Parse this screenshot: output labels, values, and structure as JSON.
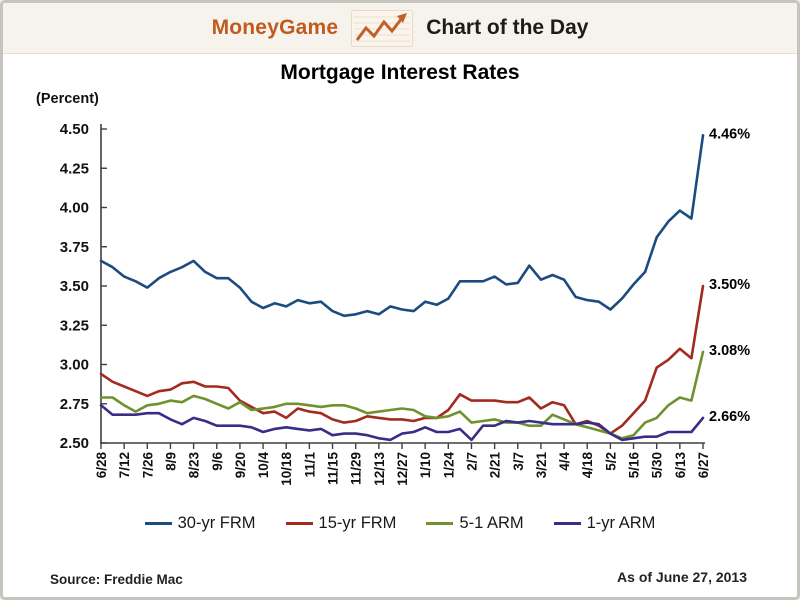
{
  "header": {
    "brand": "MoneyGame",
    "brand_color": "#c05a1e",
    "chart_of_the_day": "Chart of the Day",
    "icon": "zigzag-trend-arrow-icon",
    "icon_color": "#c06029"
  },
  "footer": {
    "source": "Source: Freddie Mac",
    "as_of": "As of June 27, 2013"
  },
  "chart_data": {
    "type": "line",
    "title": "Mortgage Interest Rates",
    "ylabel": "(Percent)",
    "xlabel": "",
    "ylim": [
      2.5,
      4.5
    ],
    "y_tick_step": 0.25,
    "y_tick_labels": [
      "4.50",
      "4.25",
      "4.00",
      "3.75",
      "3.50",
      "3.25",
      "3.00",
      "2.75",
      "2.50"
    ],
    "x_tick_labels": [
      "6/28",
      "7/12",
      "7/26",
      "8/9",
      "8/23",
      "9/6",
      "9/20",
      "10/4",
      "10/18",
      "11/1",
      "11/15",
      "11/29",
      "12/13",
      "12/27",
      "1/10",
      "1/24",
      "2/7",
      "2/21",
      "3/7",
      "3/21",
      "4/4",
      "4/18",
      "5/2",
      "5/16",
      "5/30",
      "6/13",
      "6/27"
    ],
    "x_tick_every": 2,
    "x_label_rotation": -90,
    "grid": false,
    "legend_position": "bottom",
    "series": [
      {
        "name": "30-yr FRM",
        "color": "#1b4c80",
        "end_label": "4.46%",
        "values": [
          3.66,
          3.62,
          3.56,
          3.53,
          3.49,
          3.55,
          3.59,
          3.62,
          3.66,
          3.59,
          3.55,
          3.55,
          3.49,
          3.4,
          3.36,
          3.39,
          3.37,
          3.41,
          3.39,
          3.4,
          3.34,
          3.31,
          3.32,
          3.34,
          3.32,
          3.37,
          3.35,
          3.34,
          3.4,
          3.38,
          3.42,
          3.53,
          3.53,
          3.53,
          3.56,
          3.51,
          3.52,
          3.63,
          3.54,
          3.57,
          3.54,
          3.43,
          3.41,
          3.4,
          3.35,
          3.42,
          3.51,
          3.59,
          3.81,
          3.91,
          3.98,
          3.93,
          4.46
        ]
      },
      {
        "name": "15-yr FRM",
        "color": "#a32a1f",
        "end_label": "3.50%",
        "values": [
          2.94,
          2.89,
          2.86,
          2.83,
          2.8,
          2.83,
          2.84,
          2.88,
          2.89,
          2.86,
          2.86,
          2.85,
          2.77,
          2.73,
          2.69,
          2.7,
          2.66,
          2.72,
          2.7,
          2.69,
          2.65,
          2.63,
          2.64,
          2.67,
          2.66,
          2.65,
          2.65,
          2.64,
          2.66,
          2.66,
          2.71,
          2.81,
          2.77,
          2.77,
          2.77,
          2.76,
          2.76,
          2.79,
          2.72,
          2.76,
          2.74,
          2.62,
          2.64,
          2.61,
          2.56,
          2.61,
          2.69,
          2.77,
          2.98,
          3.03,
          3.1,
          3.04,
          3.5
        ]
      },
      {
        "name": "5-1 ARM",
        "color": "#70922e",
        "end_label": "3.08%",
        "values": [
          2.79,
          2.79,
          2.74,
          2.7,
          2.74,
          2.75,
          2.77,
          2.76,
          2.8,
          2.78,
          2.75,
          2.72,
          2.76,
          2.71,
          2.72,
          2.73,
          2.75,
          2.75,
          2.74,
          2.73,
          2.74,
          2.74,
          2.72,
          2.69,
          2.7,
          2.71,
          2.72,
          2.71,
          2.67,
          2.66,
          2.67,
          2.7,
          2.63,
          2.64,
          2.65,
          2.63,
          2.63,
          2.61,
          2.61,
          2.68,
          2.65,
          2.62,
          2.6,
          2.58,
          2.56,
          2.53,
          2.55,
          2.63,
          2.66,
          2.74,
          2.79,
          2.77,
          3.08
        ]
      },
      {
        "name": "1-yr ARM",
        "color": "#3a2d87",
        "end_label": "2.66%",
        "values": [
          2.74,
          2.68,
          2.68,
          2.68,
          2.69,
          2.69,
          2.65,
          2.62,
          2.66,
          2.64,
          2.61,
          2.61,
          2.61,
          2.6,
          2.57,
          2.59,
          2.6,
          2.59,
          2.58,
          2.59,
          2.55,
          2.56,
          2.56,
          2.55,
          2.53,
          2.52,
          2.56,
          2.57,
          2.6,
          2.57,
          2.57,
          2.59,
          2.52,
          2.61,
          2.61,
          2.64,
          2.63,
          2.64,
          2.63,
          2.62,
          2.62,
          2.62,
          2.63,
          2.62,
          2.56,
          2.52,
          2.53,
          2.54,
          2.54,
          2.57,
          2.57,
          2.57,
          2.66
        ]
      }
    ]
  }
}
